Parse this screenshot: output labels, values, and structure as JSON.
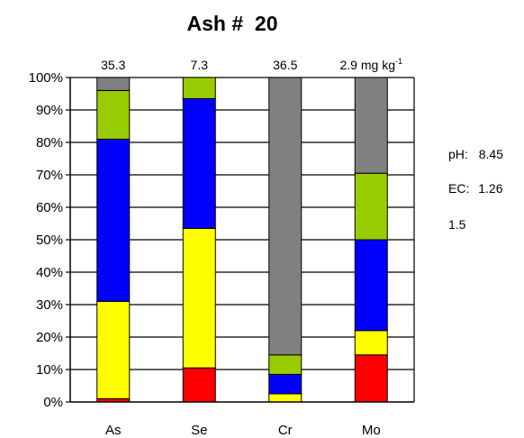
{
  "chart_data": {
    "type": "bar",
    "stacked": true,
    "percent": true,
    "title": "Ash #  20",
    "categories": [
      "As",
      "Se",
      "Cr",
      "Mo"
    ],
    "top_labels": [
      "35.3",
      "7.3",
      "36.5",
      "2.9 mg kg"
    ],
    "top_label_superscript": "-1",
    "y_ticks": [
      "0%",
      "10%",
      "20%",
      "30%",
      "40%",
      "50%",
      "60%",
      "70%",
      "80%",
      "90%",
      "100%"
    ],
    "ylim": [
      0,
      100
    ],
    "grid": true,
    "series": [
      {
        "color": "#ff0000",
        "values": [
          1,
          10.5,
          0,
          14.5
        ]
      },
      {
        "color": "#ffff00",
        "values": [
          30,
          43,
          2.5,
          7.5
        ]
      },
      {
        "color": "#0000ff",
        "values": [
          50,
          40,
          6,
          28
        ]
      },
      {
        "color": "#99cc00",
        "values": [
          15,
          6.5,
          6,
          20.5
        ]
      },
      {
        "color": "#808080",
        "values": [
          4,
          0,
          85.5,
          29.5
        ]
      }
    ]
  },
  "side_info": {
    "ph_label": "pH:",
    "ph_value": "8.45",
    "ec_label": "EC:",
    "ec_value": "1.26",
    "extra_value": "1.5"
  }
}
